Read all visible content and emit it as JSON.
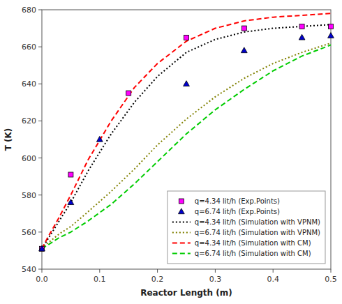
{
  "chart_data": {
    "type": "line",
    "xlabel": "Reactor Length (m)",
    "ylabel": "T (K)",
    "xlim": [
      0,
      0.5
    ],
    "ylim": [
      540,
      680
    ],
    "xticks": [
      {
        "value": 0.0,
        "label": "0.0"
      },
      0.1,
      0.2,
      0.3,
      0.4,
      0.5
    ],
    "yticks": [
      540,
      560,
      580,
      600,
      620,
      640,
      660,
      680
    ],
    "grid": false,
    "legend": "lower right",
    "series": [
      {
        "name": "q=4.34 lit/h (Exp.Points)",
        "type": "scatter",
        "marker": "square",
        "color": "#FF00FF",
        "x": [
          0.0,
          0.05,
          0.15,
          0.25,
          0.35,
          0.45,
          0.5
        ],
        "values": [
          551,
          591,
          635,
          665,
          670,
          671,
          671
        ]
      },
      {
        "name": "q=6.74 lit/h (Exp.Points)",
        "type": "scatter",
        "marker": "triangle",
        "color": "#0000CD",
        "x": [
          0.0,
          0.05,
          0.1,
          0.25,
          0.35,
          0.45,
          0.5
        ],
        "values": [
          551,
          576,
          610,
          640,
          658,
          665,
          666
        ]
      },
      {
        "name": "q=4.34 lit/h (Simulation with VPNM)",
        "type": "line",
        "line_style": "dotted",
        "color": "#000000",
        "x": [
          0.0,
          0.01,
          0.03,
          0.05,
          0.08,
          0.12,
          0.16,
          0.2,
          0.25,
          0.3,
          0.35,
          0.4,
          0.45,
          0.5
        ],
        "values": [
          551,
          556,
          566,
          576,
          593,
          613,
          630,
          644,
          657,
          664,
          668,
          670,
          671,
          672
        ]
      },
      {
        "name": "q=6.74 lit/h (Simulation with VPNM)",
        "type": "line",
        "line_style": "dotted",
        "color": "#808000",
        "x": [
          0.0,
          0.01,
          0.03,
          0.05,
          0.08,
          0.12,
          0.16,
          0.2,
          0.25,
          0.3,
          0.35,
          0.4,
          0.45,
          0.5
        ],
        "values": [
          551,
          554,
          559,
          563,
          571,
          582,
          594,
          607,
          621,
          633,
          643,
          651,
          657,
          662
        ]
      },
      {
        "name": "q=4.34 lit/h (Simulation with CM)",
        "type": "line",
        "line_style": "dashed",
        "color": "#FF0000",
        "x": [
          0.0,
          0.01,
          0.03,
          0.05,
          0.08,
          0.12,
          0.16,
          0.2,
          0.25,
          0.3,
          0.35,
          0.4,
          0.45,
          0.5
        ],
        "values": [
          551,
          557,
          568,
          580,
          599,
          620,
          638,
          651,
          663,
          670,
          674,
          676,
          677,
          678
        ]
      },
      {
        "name": "q=6.74 lit/h (Simulation with CM)",
        "type": "line",
        "line_style": "dashed",
        "color": "#00CC00",
        "x": [
          0.0,
          0.01,
          0.03,
          0.05,
          0.08,
          0.12,
          0.16,
          0.2,
          0.25,
          0.3,
          0.35,
          0.4,
          0.45,
          0.5
        ],
        "values": [
          551,
          553,
          557,
          560,
          566,
          575,
          586,
          598,
          613,
          626,
          637,
          647,
          655,
          661
        ]
      }
    ]
  }
}
